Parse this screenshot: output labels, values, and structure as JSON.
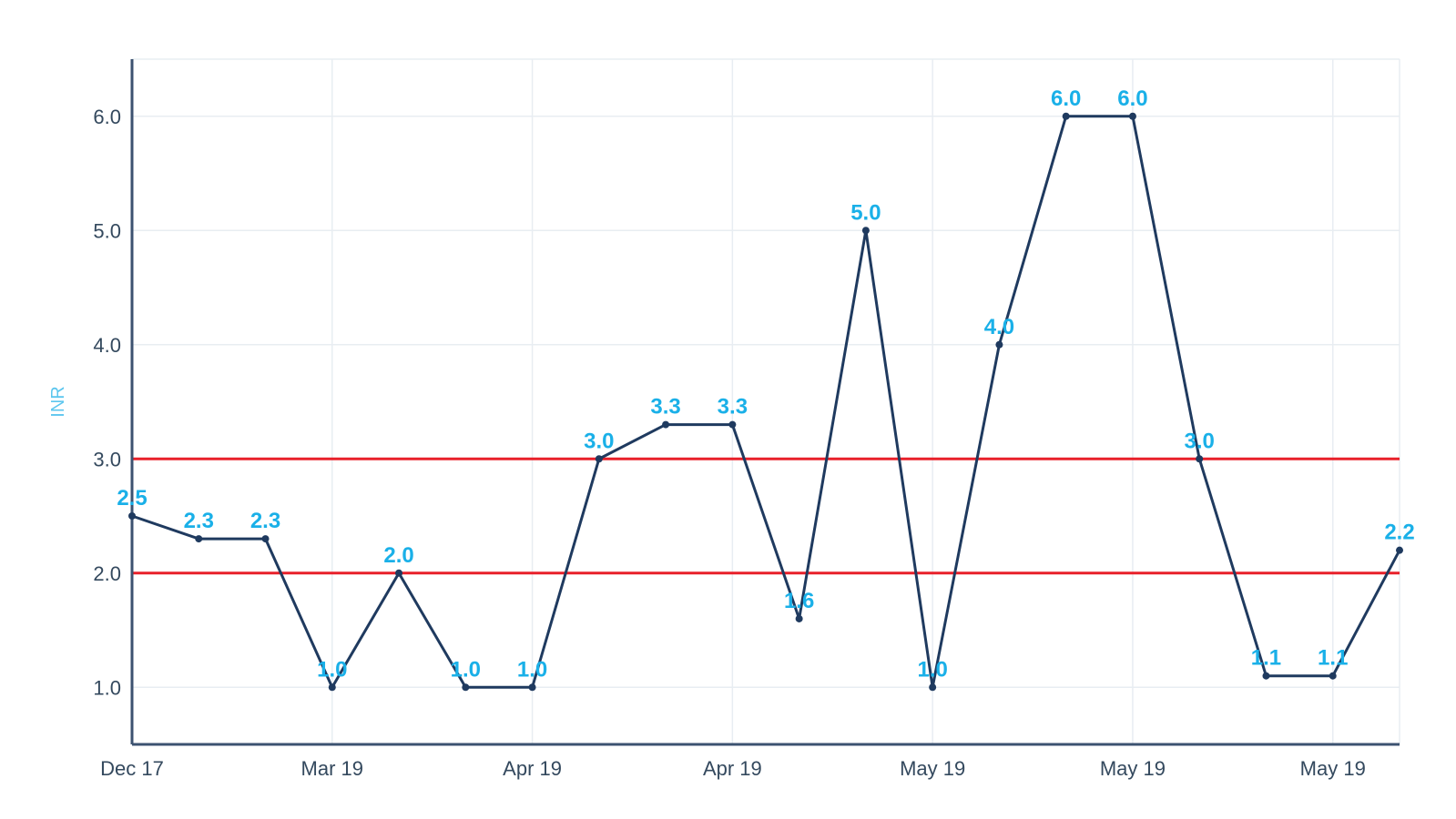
{
  "chart_data": {
    "type": "line",
    "ylabel": "INR",
    "xlabel": "",
    "ylim": [
      0.5,
      6.5
    ],
    "yticks": [
      "1.0",
      "2.0",
      "3.0",
      "4.0",
      "5.0",
      "6.0"
    ],
    "xtick_labels": [
      "Dec 17",
      "Mar 19",
      "Apr 19",
      "Apr 19",
      "May 19",
      "May 19",
      "May 19"
    ],
    "grid": true,
    "reference_lines": [
      2.0,
      3.0
    ],
    "series": [
      {
        "values": [
          2.5,
          2.3,
          2.3,
          1.0,
          2.0,
          1.0,
          1.0,
          3.0,
          3.3,
          3.3,
          1.6,
          5.0,
          1.0,
          4.0,
          6.0,
          6.0,
          3.0,
          1.1,
          1.1,
          2.2
        ],
        "labels": [
          "2.5",
          "2.3",
          "2.3",
          "1.0",
          "2.0",
          "1.0",
          "1.0",
          "3.0",
          "3.3",
          "3.3",
          "1.6",
          "5.0",
          "1.0",
          "4.0",
          "6.0",
          "6.0",
          "3.0",
          "1.1",
          "1.1",
          "2.2"
        ]
      }
    ]
  },
  "colors": {
    "line": "#1f3a5f",
    "data_label": "#1ab0e8",
    "reference_line": "#e8202a",
    "axis": "#3c5270",
    "grid": "#e8edf2",
    "axis_title": "#5cc6ee"
  }
}
